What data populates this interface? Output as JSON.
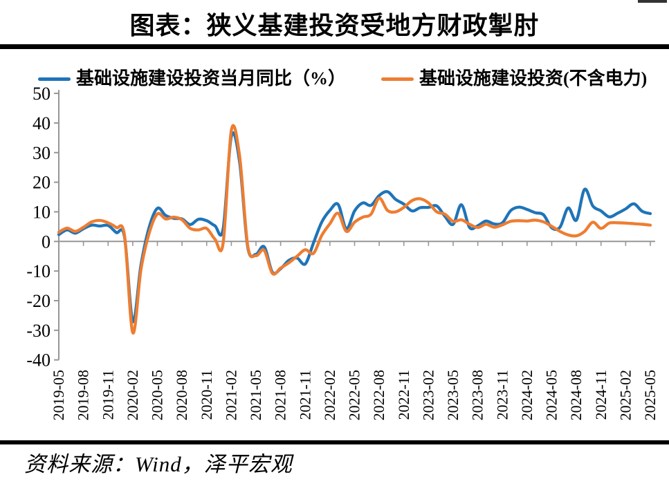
{
  "header": {
    "title": "图表：狭义基建投资受地方财政掣肘"
  },
  "legend": [
    {
      "label": "基础设施建设投资当月同比（%）",
      "color": "#1F74B8"
    },
    {
      "label": "基础设施建设投资(不含电力)",
      "color": "#EE7D31"
    }
  ],
  "footer": {
    "source": "资料来源：Wind，泽平宏观"
  },
  "colors": {
    "series_blue": "#1F74B8",
    "series_orange": "#EE7D31",
    "axis_gray": "#969696",
    "rule_black": "#000000"
  },
  "chart_data": {
    "type": "line",
    "title": "图表：狭义基建投资受地方财政掣肘",
    "xlabel": "",
    "ylabel": "",
    "ylim": [
      -40,
      50
    ],
    "yticks": [
      50,
      40,
      30,
      20,
      10,
      0,
      -10,
      -20,
      -30,
      -40
    ],
    "grid": false,
    "legend_position": "top",
    "x_tick_every": 3,
    "x": [
      "2019-05",
      "2019-06",
      "2019-07",
      "2019-08",
      "2019-09",
      "2019-10",
      "2019-11",
      "2019-12",
      "2020-01",
      "2020-02",
      "2020-03",
      "2020-04",
      "2020-05",
      "2020-06",
      "2020-07",
      "2020-08",
      "2020-09",
      "2020-10",
      "2020-11",
      "2020-12",
      "2021-01",
      "2021-02",
      "2021-03",
      "2021-04",
      "2021-05",
      "2021-06",
      "2021-07",
      "2021-08",
      "2021-09",
      "2021-10",
      "2021-11",
      "2021-12",
      "2022-01",
      "2022-02",
      "2022-03",
      "2022-04",
      "2022-05",
      "2022-06",
      "2022-07",
      "2022-08",
      "2022-09",
      "2022-10",
      "2022-11",
      "2022-12",
      "2023-01",
      "2023-02",
      "2023-03",
      "2023-04",
      "2023-05",
      "2023-06",
      "2023-07",
      "2023-08",
      "2023-09",
      "2023-10",
      "2023-11",
      "2023-12",
      "2024-01",
      "2024-02",
      "2024-03",
      "2024-04",
      "2024-05",
      "2024-06",
      "2024-07",
      "2024-08",
      "2024-09",
      "2024-10",
      "2024-11",
      "2024-12",
      "2025-01",
      "2025-02",
      "2025-03",
      "2025-04",
      "2025-05"
    ],
    "series": [
      {
        "name": "基础设施建设投资当月同比（%）",
        "color": "#1F74B8",
        "values": [
          2.3,
          3.9,
          2.8,
          4.3,
          5.5,
          5.2,
          5.4,
          3.0,
          1.5,
          -27.0,
          -8.0,
          4.8,
          11.2,
          8.8,
          7.8,
          7.6,
          5.7,
          7.5,
          7.0,
          5.3,
          4.2,
          35.5,
          27.0,
          -2.0,
          -4.3,
          -1.8,
          -10.4,
          -9.2,
          -6.4,
          -5.6,
          -7.6,
          -0.5,
          6.5,
          10.5,
          12.5,
          4.3,
          10.3,
          13.0,
          12.2,
          15.5,
          16.8,
          14.2,
          12.6,
          10.3,
          11.4,
          11.5,
          12.0,
          8.5,
          5.8,
          12.4,
          4.7,
          5.3,
          6.9,
          5.9,
          6.3,
          10.4,
          11.6,
          10.8,
          9.7,
          9.0,
          4.6,
          4.8,
          11.3,
          7.2,
          17.6,
          12.0,
          10.3,
          8.3,
          9.5,
          11.0,
          12.7,
          10.2,
          9.4
        ]
      },
      {
        "name": "基础设施建设投资(不含电力)",
        "color": "#EE7D31",
        "values": [
          3.1,
          4.5,
          3.4,
          4.8,
          6.6,
          7.1,
          6.3,
          4.7,
          2.0,
          -30.8,
          -9.5,
          2.8,
          9.3,
          7.6,
          8.2,
          7.3,
          4.4,
          3.9,
          4.4,
          0.8,
          -0.6,
          37.5,
          29.0,
          -1.5,
          -4.8,
          -3.0,
          -10.8,
          -9.0,
          -7.2,
          -5.0,
          -2.8,
          -4.0,
          2.0,
          6.0,
          9.5,
          3.4,
          6.5,
          8.2,
          9.2,
          14.6,
          10.5,
          10.0,
          11.5,
          13.8,
          14.4,
          13.0,
          10.0,
          9.2,
          6.8,
          7.3,
          5.8,
          4.7,
          5.8,
          4.8,
          5.6,
          6.8,
          7.0,
          6.9,
          7.2,
          6.6,
          5.1,
          3.4,
          2.2,
          1.9,
          3.4,
          6.5,
          4.4,
          6.2,
          6.3,
          6.2,
          6.0,
          5.8,
          5.5
        ]
      }
    ]
  }
}
